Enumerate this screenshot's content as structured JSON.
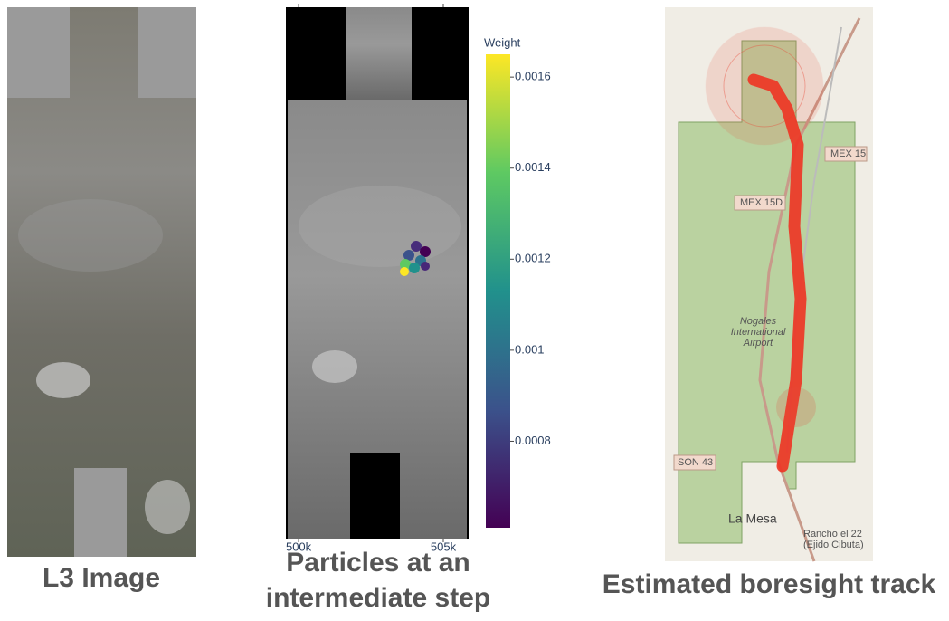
{
  "panels": [
    {
      "caption": "L3 Image"
    },
    {
      "caption_lines": [
        "Particles at an",
        "intermediate step"
      ],
      "colorbar": {
        "title": "Weight",
        "range": [
          0.00061,
          0.00165
        ],
        "ticks": [
          0.0016,
          0.0014,
          0.0012,
          0.001,
          0.0008
        ]
      },
      "xlim": [
        499560,
        505875
      ],
      "xticks": [
        {
          "value": 500000,
          "label": "500k"
        },
        {
          "value": 505000,
          "label": "505k"
        }
      ]
    },
    {
      "caption": "Estimated boresight track",
      "map_labels": [
        "MEX 15",
        "MEX 15D",
        "Nogales",
        "International",
        "Airport",
        "SON 43",
        "La Mesa",
        "Rancho el 22",
        "(Ejido Cibuta)"
      ]
    }
  ]
}
